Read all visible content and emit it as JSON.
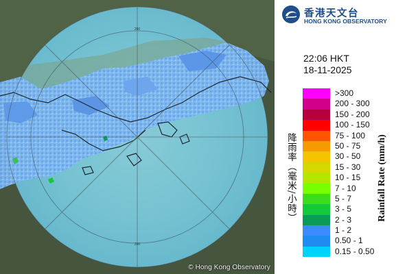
{
  "map": {
    "copyright": "© Hong Kong Observatory",
    "range_ring_label": "200"
  },
  "header": {
    "logo_chinese": "香港天文台",
    "logo_english": "HONG KONG OBSERVATORY",
    "time": "22:06 HKT",
    "date": "18-11-2025"
  },
  "legend": {
    "title_chinese": "降雨率（毫米/小時）",
    "title_english": "Rainfall Rate (mm/h)",
    "items": [
      {
        "label": ">300",
        "color": "#ff00ff"
      },
      {
        "label": "200 - 300",
        "color": "#d0008c"
      },
      {
        "label": "150 - 200",
        "color": "#b4003c"
      },
      {
        "label": "100 - 150",
        "color": "#ff0000"
      },
      {
        "label": "75 - 100",
        "color": "#ff5500"
      },
      {
        "label": "50 - 75",
        "color": "#f59a00"
      },
      {
        "label": "30 - 50",
        "color": "#f5c400"
      },
      {
        "label": "15 - 30",
        "color": "#d6d600"
      },
      {
        "label": "10 - 15",
        "color": "#b4e600"
      },
      {
        "label": "7 - 10",
        "color": "#78ff00"
      },
      {
        "label": "5 - 7",
        "color": "#3cdc1e"
      },
      {
        "label": "3 - 5",
        "color": "#14c83c"
      },
      {
        "label": "2 - 3",
        "color": "#0a9a5a"
      },
      {
        "label": "1 - 2",
        "color": "#3c8cff"
      },
      {
        "label": "0.50 - 1",
        "color": "#1e8cf0"
      },
      {
        "label": "0.15 - 0.50",
        "color": "#00d2ff"
      }
    ]
  }
}
